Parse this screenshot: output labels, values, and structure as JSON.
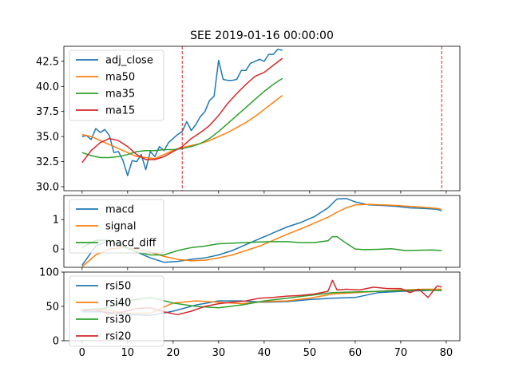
{
  "title": "SEE 2019-01-16 00:00:00",
  "colors": {
    "blue": "#1f77b4",
    "orange": "#ff7f0e",
    "green": "#2ca02c",
    "red": "#d62728"
  },
  "chart_data": [
    {
      "type": "line",
      "xlim": [
        -4,
        83
      ],
      "ylim": [
        29.6,
        44.0
      ],
      "yticks": [
        30.0,
        32.5,
        35.0,
        37.5,
        40.0,
        42.5
      ],
      "ytick_labels": [
        "30.0",
        "32.5",
        "35.0",
        "37.5",
        "40.0",
        "42.5"
      ],
      "vlines": [
        22,
        79
      ],
      "legend": {
        "placement": "top-left"
      },
      "series": [
        {
          "name": "adj_close",
          "color": "#1f77b4",
          "x": [
            0,
            1,
            2,
            3,
            4,
            5,
            6,
            7,
            8,
            9,
            10,
            11,
            12,
            13,
            14,
            15,
            16,
            17,
            18,
            19,
            20,
            21,
            22,
            23,
            24,
            25,
            26,
            27,
            28,
            29,
            30,
            31,
            32,
            33,
            34,
            35,
            36,
            37,
            38,
            39,
            40,
            41,
            42,
            43,
            44
          ],
          "y": [
            35.0,
            35.1,
            34.7,
            35.8,
            35.4,
            35.7,
            35.1,
            33.4,
            33.5,
            32.6,
            31.1,
            32.6,
            32.5,
            33.2,
            31.7,
            33.5,
            33.0,
            34.0,
            33.6,
            34.4,
            34.8,
            35.2,
            35.5,
            36.5,
            35.6,
            36.2,
            37.0,
            37.5,
            38.6,
            39.0,
            42.6,
            40.7,
            40.6,
            40.6,
            40.7,
            41.6,
            41.6,
            42.3,
            42.5,
            42.7,
            42.5,
            43.2,
            43.2,
            43.7,
            43.6
          ]
        },
        {
          "name": "ma50",
          "color": "#ff7f0e",
          "x": [
            0,
            2,
            4,
            6,
            8,
            10,
            12,
            14,
            16,
            18,
            20,
            22,
            24,
            26,
            28,
            30,
            32,
            34,
            36,
            38,
            40,
            42,
            44
          ],
          "y": [
            35.2,
            35.0,
            34.6,
            34.2,
            33.8,
            33.4,
            33.0,
            32.9,
            32.8,
            33.2,
            33.6,
            33.9,
            34.1,
            34.3,
            34.6,
            35.0,
            35.4,
            35.9,
            36.4,
            37.0,
            37.7,
            38.4,
            39.1
          ]
        },
        {
          "name": "ma35",
          "color": "#2ca02c",
          "x": [
            0,
            2,
            4,
            6,
            8,
            10,
            12,
            14,
            16,
            18,
            20,
            22,
            24,
            26,
            28,
            30,
            32,
            34,
            36,
            38,
            40,
            42,
            44
          ],
          "y": [
            33.4,
            33.1,
            32.9,
            32.9,
            33.0,
            33.2,
            33.5,
            33.6,
            33.6,
            33.7,
            33.7,
            33.8,
            34.0,
            34.3,
            34.8,
            35.5,
            36.3,
            37.1,
            37.9,
            38.7,
            39.5,
            40.2,
            40.8
          ]
        },
        {
          "name": "ma15",
          "color": "#d62728",
          "x": [
            0,
            2,
            4,
            6,
            8,
            10,
            12,
            14,
            16,
            18,
            20,
            22,
            24,
            26,
            28,
            30,
            32,
            34,
            36,
            38,
            40,
            42,
            44
          ],
          "y": [
            32.4,
            33.6,
            34.4,
            34.8,
            34.6,
            34.0,
            33.2,
            32.7,
            32.7,
            33.0,
            33.5,
            34.0,
            34.8,
            35.4,
            36.1,
            37.1,
            38.3,
            39.3,
            40.2,
            41.0,
            41.4,
            42.1,
            42.8
          ]
        }
      ]
    },
    {
      "type": "line",
      "xlim": [
        -4,
        83
      ],
      "ylim": [
        -0.62,
        1.82
      ],
      "yticks": [
        0,
        1
      ],
      "ytick_labels": [
        "0",
        "1"
      ],
      "legend": {
        "placement": "top-left"
      },
      "series": [
        {
          "name": "macd",
          "color": "#1f77b4",
          "x": [
            0,
            3,
            6,
            9,
            12,
            15,
            18,
            21,
            24,
            27,
            30,
            33,
            36,
            39,
            42,
            45,
            48,
            51,
            54,
            56,
            58,
            60,
            63,
            66,
            69,
            72,
            75,
            78,
            79
          ],
          "y": [
            -0.55,
            0.1,
            0.3,
            0.1,
            -0.1,
            -0.3,
            -0.45,
            -0.42,
            -0.35,
            -0.3,
            -0.2,
            -0.05,
            0.15,
            0.35,
            0.55,
            0.75,
            0.9,
            1.1,
            1.4,
            1.7,
            1.72,
            1.6,
            1.5,
            1.48,
            1.45,
            1.4,
            1.38,
            1.35,
            1.3
          ]
        },
        {
          "name": "signal",
          "color": "#ff7f0e",
          "x": [
            0,
            3,
            6,
            9,
            12,
            15,
            18,
            21,
            24,
            27,
            30,
            33,
            36,
            39,
            42,
            45,
            48,
            51,
            54,
            56,
            58,
            60,
            63,
            66,
            69,
            72,
            75,
            78,
            79
          ],
          "y": [
            -0.6,
            -0.2,
            0.0,
            0.05,
            0.0,
            -0.1,
            -0.25,
            -0.35,
            -0.4,
            -0.38,
            -0.3,
            -0.2,
            -0.05,
            0.1,
            0.3,
            0.5,
            0.68,
            0.88,
            1.08,
            1.25,
            1.4,
            1.5,
            1.52,
            1.5,
            1.48,
            1.45,
            1.42,
            1.38,
            1.35
          ]
        },
        {
          "name": "macd_diff",
          "color": "#2ca02c",
          "x": [
            0,
            3,
            6,
            9,
            12,
            15,
            18,
            21,
            24,
            27,
            30,
            33,
            36,
            39,
            42,
            45,
            48,
            51,
            54,
            55,
            56,
            58,
            60,
            62,
            65,
            68,
            71,
            74,
            77,
            79
          ],
          "y": [
            0.05,
            0.3,
            0.3,
            0.1,
            -0.1,
            -0.2,
            -0.2,
            -0.05,
            0.05,
            0.1,
            0.18,
            0.2,
            0.22,
            0.24,
            0.25,
            0.25,
            0.22,
            0.22,
            0.28,
            0.42,
            0.42,
            0.2,
            0.0,
            -0.02,
            -0.01,
            0.01,
            -0.05,
            -0.04,
            -0.03,
            -0.05
          ]
        }
      ]
    },
    {
      "type": "line",
      "xlim": [
        -4,
        83
      ],
      "xticks": [
        0,
        10,
        20,
        30,
        40,
        50,
        60,
        70,
        80
      ],
      "xtick_labels": [
        "0",
        "10",
        "20",
        "30",
        "40",
        "50",
        "60",
        "70",
        "80"
      ],
      "ylim": [
        0,
        100
      ],
      "yticks": [
        0,
        50,
        100
      ],
      "ytick_labels": [
        "0",
        "50",
        "100"
      ],
      "legend": {
        "placement": "top-left"
      },
      "series": [
        {
          "name": "rsi50",
          "color": "#1f77b4",
          "x": [
            0,
            5,
            10,
            15,
            20,
            25,
            30,
            35,
            40,
            45,
            50,
            55,
            60,
            65,
            70,
            75,
            79
          ],
          "y": [
            42,
            42,
            38,
            37,
            43,
            52,
            58,
            58,
            56,
            57,
            60,
            62,
            63,
            70,
            72,
            73,
            74
          ]
        },
        {
          "name": "rsi40",
          "color": "#ff7f0e",
          "x": [
            0,
            5,
            10,
            15,
            20,
            25,
            30,
            35,
            40,
            45,
            50,
            55,
            60,
            65,
            70,
            75,
            79
          ],
          "y": [
            44,
            45,
            40,
            40,
            55,
            58,
            56,
            54,
            57,
            58,
            62,
            68,
            70,
            72,
            74,
            75,
            75
          ]
        },
        {
          "name": "rsi30",
          "color": "#2ca02c",
          "x": [
            0,
            5,
            10,
            15,
            20,
            25,
            30,
            35,
            40,
            45,
            50,
            55,
            60,
            65,
            70,
            75,
            79
          ],
          "y": [
            45,
            47,
            58,
            63,
            55,
            50,
            48,
            52,
            58,
            62,
            66,
            70,
            71,
            72,
            73,
            74,
            73
          ]
        },
        {
          "name": "rsi20",
          "color": "#d62728",
          "x": [
            0,
            3,
            6,
            9,
            12,
            15,
            18,
            21,
            24,
            27,
            30,
            33,
            36,
            39,
            42,
            45,
            48,
            51,
            54,
            55,
            56,
            58,
            61,
            64,
            67,
            70,
            72,
            74,
            76,
            78,
            79
          ],
          "y": [
            44,
            45,
            39,
            42,
            47,
            48,
            42,
            38,
            43,
            50,
            54,
            56,
            58,
            62,
            63,
            65,
            66,
            68,
            72,
            88,
            74,
            75,
            74,
            78,
            76,
            76,
            70,
            75,
            63,
            80,
            78
          ]
        }
      ]
    }
  ]
}
